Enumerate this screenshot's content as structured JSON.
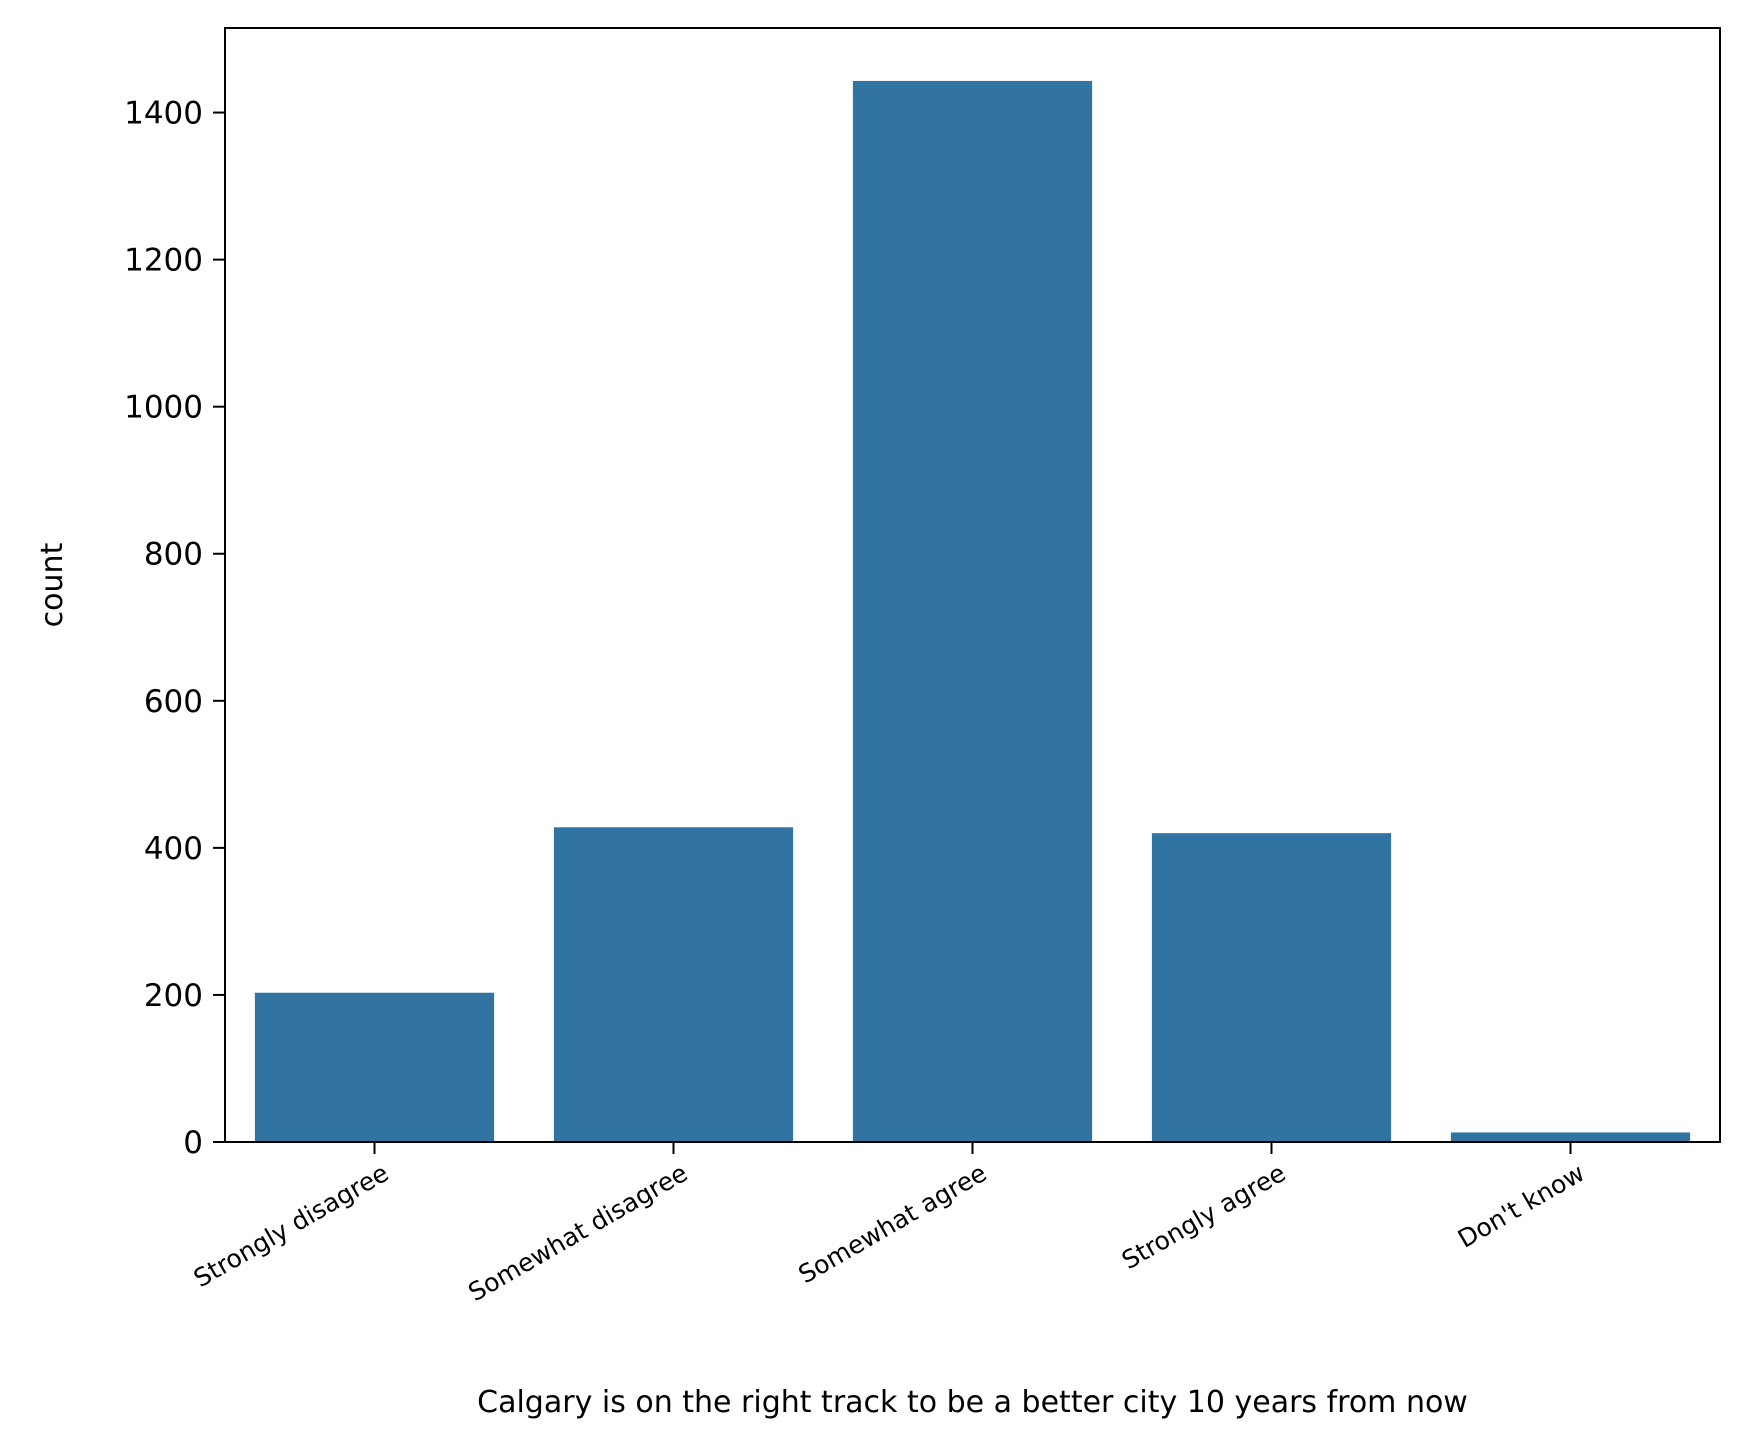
{
  "chart_data": {
    "type": "bar",
    "title": "",
    "xlabel": "Calgary is on the right track to be a better city 10 years from now",
    "ylabel": "count",
    "categories": [
      "Strongly disagree",
      "Somewhat disagree",
      "Somewhat agree",
      "Strongly agree",
      "Don't know"
    ],
    "values": [
      203,
      428,
      1443,
      420,
      13
    ],
    "ylim": [
      0,
      1515
    ],
    "yticks": [
      0,
      200,
      400,
      600,
      800,
      1000,
      1200,
      1400
    ],
    "grid": false,
    "legend": "none",
    "bar_color": "#3274a1"
  }
}
